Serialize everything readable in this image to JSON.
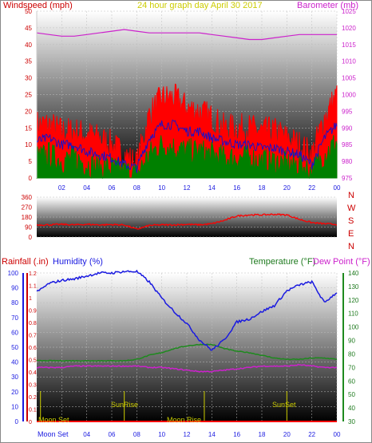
{
  "header": {
    "windspeed_label": "Windspeed (mph)",
    "title": "24 hour graph day   April 30 2017",
    "barometer_label": "Barometer (mb)"
  },
  "wind_panel": {
    "y_ticks": [
      0,
      5,
      10,
      15,
      20,
      25,
      30,
      35,
      40,
      45,
      50
    ],
    "baro_ticks": [
      975,
      980,
      985,
      990,
      995,
      1000,
      1005,
      1010,
      1015,
      1020,
      1025
    ],
    "x_ticks": [
      "02",
      "04",
      "06",
      "08",
      "10",
      "12",
      "14",
      "16",
      "18",
      "20",
      "22",
      "00"
    ]
  },
  "direction_panel": {
    "y_ticks": [
      0,
      90,
      180,
      270,
      360
    ],
    "compass": [
      "N",
      "W",
      "S",
      "E",
      "N"
    ]
  },
  "lower_panel": {
    "rain_label": "Rainfall (.in)",
    "humidity_label": "Humidity (%)",
    "temp_label": "Temperature (°F)",
    "dew_label": "Dew Point (°F)",
    "rain_ticks": [
      0,
      0.1,
      0.2,
      0.3,
      0.4,
      0.5,
      0.6,
      0.7,
      0.8,
      0.9,
      1,
      1.1,
      1.2
    ],
    "humidity_ticks": [
      0,
      10,
      20,
      30,
      40,
      50,
      60,
      70,
      80,
      90,
      100
    ],
    "temp_ticks": [
      30,
      40,
      50,
      60,
      70,
      80,
      90,
      100,
      110,
      120,
      130,
      140
    ],
    "x_ticks": [
      "02",
      "04",
      "06",
      "08",
      "10",
      "12",
      "14",
      "16",
      "18",
      "20",
      "22",
      "00"
    ],
    "events": {
      "moon_set_label": "Moon Set",
      "sunrise": "SunRise",
      "moon_rise": "Moon Rise",
      "sunset": "SunSet",
      "moon_set_axis": "Moon Set"
    }
  },
  "colors": {
    "gust": "#ff0000",
    "avg_wind": "#1010d0",
    "wind_lower": "#008000",
    "barometer": "#cc22cc",
    "direction": "#ff0000",
    "humidity": "#1a1ae0",
    "temperature": "#1e8a1e",
    "dew_point": "#cc22cc",
    "rain": "#ff0000"
  },
  "chart_data": [
    {
      "type": "line",
      "name": "wind",
      "x": [
        0,
        1,
        2,
        3,
        4,
        5,
        6,
        7,
        8,
        9,
        10,
        11,
        12,
        13,
        14,
        15,
        16,
        17,
        18,
        19,
        20,
        21,
        22,
        23,
        24
      ],
      "series": [
        {
          "name": "gust",
          "values": [
            16,
            16,
            14,
            14,
            13,
            12,
            10,
            7,
            4,
            19,
            24,
            24,
            21,
            20,
            18,
            15,
            15,
            15,
            14,
            14,
            12,
            10,
            7,
            18,
            25
          ]
        },
        {
          "name": "avg",
          "values": [
            11,
            12,
            10,
            10,
            8,
            7,
            6,
            4,
            3,
            12,
            16,
            16,
            14,
            14,
            12,
            11,
            10,
            10,
            9,
            9,
            8,
            7,
            4,
            12,
            16
          ]
        },
        {
          "name": "low",
          "values": [
            6,
            7,
            5,
            6,
            4,
            3,
            3,
            2,
            1,
            7,
            10,
            9,
            8,
            8,
            7,
            6,
            6,
            6,
            5,
            5,
            4,
            4,
            2,
            7,
            11
          ]
        },
        {
          "name": "barometer",
          "axis": "right",
          "values": [
            1018.5,
            1018,
            1017.5,
            1017.5,
            1018,
            1018.5,
            1019,
            1019.5,
            1019,
            1018.5,
            1018.5,
            1018.5,
            1018.5,
            1018.5,
            1018,
            1017.5,
            1017,
            1016.5,
            1016.5,
            1017,
            1017.5,
            1018,
            1018,
            1018,
            1018
          ]
        }
      ],
      "xlabel": "",
      "ylabel": "Windspeed (mph)",
      "ylim": [
        0,
        50
      ],
      "y2lim": [
        975,
        1025
      ],
      "grid": true
    },
    {
      "type": "line",
      "name": "wind_direction",
      "x": [
        0,
        1,
        2,
        3,
        4,
        5,
        6,
        7,
        8,
        9,
        10,
        11,
        12,
        13,
        14,
        15,
        16,
        17,
        18,
        19,
        20,
        21,
        22,
        23,
        24
      ],
      "series": [
        {
          "name": "direction",
          "values": [
            110,
            110,
            115,
            110,
            115,
            110,
            112,
            110,
            70,
            105,
            110,
            110,
            115,
            110,
            120,
            150,
            190,
            200,
            200,
            205,
            200,
            160,
            130,
            120,
            115
          ]
        }
      ],
      "ylim": [
        0,
        360
      ],
      "grid": true
    },
    {
      "type": "line",
      "name": "humidity_temperature",
      "x": [
        0,
        1,
        2,
        3,
        4,
        5,
        6,
        7,
        8,
        9,
        10,
        11,
        12,
        13,
        14,
        15,
        16,
        17,
        18,
        19,
        20,
        21,
        22,
        23,
        24
      ],
      "series": [
        {
          "name": "humidity",
          "axis": "humidity",
          "values": [
            87,
            93,
            95,
            96,
            98,
            100,
            100,
            101,
            101,
            94,
            83,
            74,
            66,
            55,
            48,
            55,
            67,
            69,
            74,
            78,
            88,
            92,
            94,
            80,
            87
          ]
        },
        {
          "name": "temperature",
          "axis": "temperature",
          "values": [
            75,
            75,
            75,
            75,
            75,
            75,
            75,
            75,
            76,
            79,
            81,
            84,
            86,
            87,
            87,
            84,
            82,
            81,
            79,
            77,
            76,
            76,
            77,
            77,
            76
          ]
        },
        {
          "name": "dew_point",
          "axis": "temperature",
          "values": [
            70,
            70,
            70,
            71,
            71,
            71,
            71,
            71,
            71,
            70,
            70,
            69,
            68,
            67,
            67,
            68,
            69,
            70,
            71,
            71,
            71,
            72,
            71,
            70,
            70
          ]
        },
        {
          "name": "rainfall",
          "axis": "rain",
          "values": [
            0,
            0,
            0,
            0,
            0,
            0,
            0,
            0,
            0,
            0,
            0,
            0,
            0,
            0,
            0,
            0,
            0,
            0,
            0,
            0,
            0,
            0,
            0,
            0,
            0
          ]
        }
      ],
      "ylim_humidity": [
        0,
        100
      ],
      "ylim_rain": [
        0,
        1.2
      ],
      "ylim_temperature": [
        30,
        140
      ],
      "grid": true
    }
  ]
}
